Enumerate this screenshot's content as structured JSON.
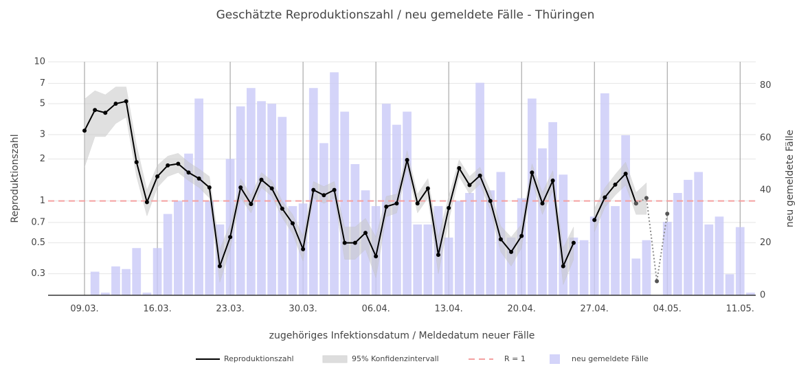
{
  "chart_data": {
    "type": "combo",
    "title": "Geschätzte Reproduktionszahl / neu gemeldete Fälle - Thüringen",
    "x_label": "zugehöriges Infektionsdatum / Meldedatum neuer Fälle",
    "y_label": "Reproduktionszahl",
    "y2_label": "neu gemeldete Fälle",
    "log_y": true,
    "grid": true,
    "categories": [
      null,
      null,
      null,
      "09.03.",
      null,
      null,
      null,
      null,
      null,
      null,
      "16.03.",
      null,
      null,
      null,
      null,
      null,
      null,
      "23.03.",
      null,
      null,
      null,
      null,
      null,
      null,
      "30.03.",
      null,
      null,
      null,
      null,
      null,
      null,
      "06.04.",
      null,
      null,
      null,
      null,
      null,
      null,
      "13.04.",
      null,
      null,
      null,
      null,
      null,
      null,
      "20.04.",
      null,
      null,
      null,
      null,
      null,
      null,
      "27.04.",
      null,
      null,
      null,
      null,
      null,
      null,
      "04.05.",
      null,
      null,
      null,
      null,
      null,
      null,
      "11.05.",
      null
    ],
    "ylim": [
      0.21,
      10
    ],
    "yticks": [
      0.3,
      0.5,
      0.7,
      1,
      2,
      3,
      5,
      7,
      10
    ],
    "y2lim": [
      0,
      89
    ],
    "y2ticks": [
      0,
      20,
      40,
      60,
      80
    ],
    "bars": {
      "name": "neu gemeldete Fälle",
      "color": "#c9c9f7",
      "axis": "y2",
      "values": [
        0,
        0,
        0,
        0,
        9,
        1,
        11,
        10,
        18,
        1,
        18,
        31,
        36,
        54,
        75,
        36,
        27,
        52,
        72,
        79,
        74,
        73,
        68,
        34,
        35,
        79,
        58,
        85,
        70,
        50,
        40,
        34,
        73,
        65,
        70,
        27,
        27,
        34,
        22,
        36,
        39,
        81,
        40,
        47,
        22,
        37,
        75,
        56,
        66,
        46,
        22,
        21,
        30,
        77,
        34,
        61,
        14,
        21,
        0,
        28,
        39,
        44,
        47,
        27,
        30,
        8,
        26,
        1
      ]
    },
    "band": {
      "name": "95% Konfidenzintervall",
      "color": "#c8c8c8",
      "lower": [
        null,
        null,
        null,
        1.75,
        2.9,
        2.9,
        3.6,
        4.0,
        1.5,
        0.78,
        1.25,
        1.5,
        1.6,
        1.4,
        1.25,
        1.05,
        0.26,
        0.45,
        1.05,
        0.82,
        1.25,
        1.08,
        0.76,
        0.58,
        0.37,
        1.05,
        0.96,
        1.05,
        0.38,
        0.38,
        0.45,
        0.28,
        0.77,
        0.82,
        1.7,
        0.82,
        1.05,
        0.3,
        0.72,
        1.5,
        1.12,
        1.32,
        0.86,
        0.43,
        0.34,
        0.46,
        1.38,
        0.8,
        1.18,
        0.25,
        0.38,
        null,
        0.6,
        0.9,
        1.1,
        1.3,
        0.8,
        0.8,
        null,
        null,
        null,
        null,
        null,
        null,
        null,
        null,
        null,
        null
      ],
      "upper": [
        null,
        null,
        null,
        5.4,
        6.2,
        5.8,
        6.6,
        6.6,
        2.5,
        1.2,
        1.8,
        2.1,
        2.2,
        1.9,
        1.7,
        1.5,
        0.45,
        0.68,
        1.45,
        1.1,
        1.6,
        1.4,
        1.0,
        0.8,
        0.56,
        1.38,
        1.27,
        1.38,
        0.65,
        0.65,
        0.75,
        0.55,
        1.08,
        1.12,
        2.3,
        1.12,
        1.45,
        0.55,
        1.08,
        1.98,
        1.5,
        1.75,
        1.18,
        0.66,
        0.55,
        0.68,
        1.85,
        1.15,
        1.65,
        0.46,
        0.65,
        null,
        0.88,
        1.24,
        1.55,
        1.9,
        1.15,
        1.35,
        null,
        null,
        null,
        null,
        null,
        null,
        null,
        null,
        null,
        null
      ]
    },
    "series": [
      {
        "name": "Reproduktionszahl",
        "color": "#000000",
        "style": "solid",
        "values": [
          null,
          null,
          null,
          3.2,
          4.5,
          4.3,
          5.0,
          5.2,
          1.9,
          0.98,
          1.5,
          1.8,
          1.85,
          1.6,
          1.45,
          1.25,
          0.34,
          0.55,
          1.25,
          0.95,
          1.42,
          1.23,
          0.88,
          0.69,
          0.45,
          1.2,
          1.1,
          1.2,
          0.5,
          0.5,
          0.59,
          0.4,
          0.91,
          0.96,
          1.97,
          0.96,
          1.23,
          0.41,
          0.89,
          1.72,
          1.3,
          1.52,
          1.0,
          0.53,
          0.43,
          0.56,
          1.6,
          0.96,
          1.4,
          0.34,
          0.5,
          null,
          0.73,
          1.06,
          1.31,
          1.57,
          0.96,
          null,
          null,
          null,
          null,
          null,
          null,
          null,
          null,
          null,
          null,
          null
        ]
      },
      {
        "color": "#888888",
        "style": "dotted",
        "values": [
          null,
          null,
          null,
          null,
          null,
          null,
          null,
          null,
          null,
          null,
          null,
          null,
          null,
          null,
          null,
          null,
          null,
          null,
          null,
          null,
          null,
          null,
          null,
          null,
          null,
          null,
          null,
          null,
          null,
          null,
          null,
          null,
          null,
          null,
          null,
          null,
          null,
          null,
          null,
          null,
          null,
          null,
          null,
          null,
          null,
          null,
          null,
          null,
          null,
          null,
          null,
          null,
          null,
          null,
          null,
          null,
          0.96,
          1.05,
          0.265,
          0.81,
          null,
          null,
          null,
          null,
          null,
          null,
          null,
          null
        ]
      }
    ],
    "reference": {
      "name": "R = 1",
      "value": 1,
      "color": "#f4a0a0"
    }
  }
}
